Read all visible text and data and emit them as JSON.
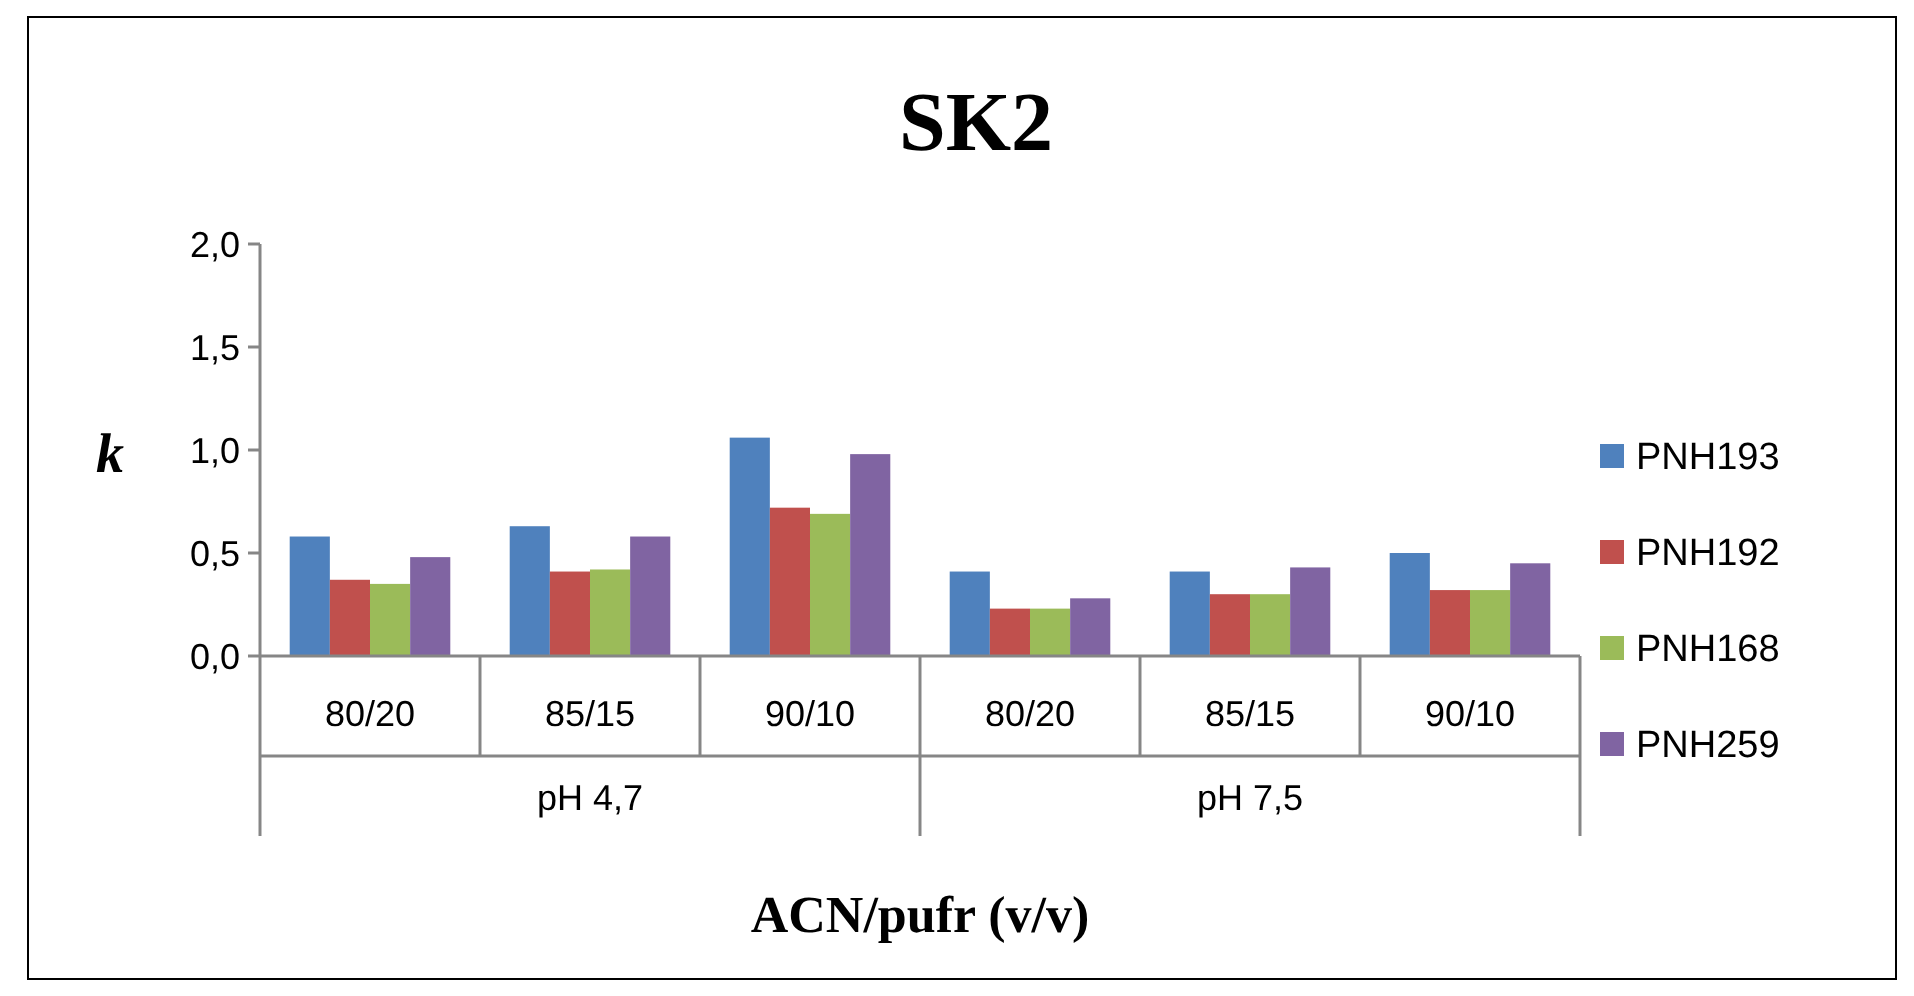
{
  "chart_data": {
    "type": "bar",
    "title": "SK2",
    "xlabel": "ACN/pufr (v/v)",
    "ylabel": "k",
    "categories": [
      "80/20",
      "85/15",
      "90/10",
      "80/20",
      "85/15",
      "90/10"
    ],
    "annotations": [
      "pH 4,7",
      "pH 7,5"
    ],
    "series": [
      {
        "name": "PNH193",
        "color": "#4f81bd",
        "values": [
          0.58,
          0.63,
          1.06,
          0.41,
          0.41,
          0.5
        ]
      },
      {
        "name": "PNH192",
        "color": "#c0504d",
        "values": [
          0.37,
          0.41,
          0.72,
          0.23,
          0.3,
          0.32
        ]
      },
      {
        "name": "PNH168",
        "color": "#9bbb59",
        "values": [
          0.35,
          0.42,
          0.69,
          0.23,
          0.3,
          0.32
        ]
      },
      {
        "name": "PNH259",
        "color": "#8064a2",
        "values": [
          0.48,
          0.58,
          0.98,
          0.28,
          0.43,
          0.45
        ]
      }
    ],
    "ylim": [
      0,
      2
    ],
    "yticks": [
      {
        "value": 0,
        "label": "0,0"
      },
      {
        "value": 0.5,
        "label": "0,5"
      },
      {
        "value": 1,
        "label": "1,0"
      },
      {
        "value": 1.5,
        "label": "1,5"
      },
      {
        "value": 2,
        "label": "2,0"
      }
    ],
    "legend": "right",
    "grid": false
  }
}
